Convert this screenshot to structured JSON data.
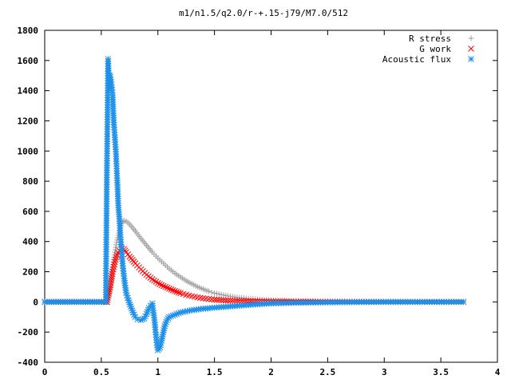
{
  "chart_data": {
    "type": "scatter",
    "title": "m1/n1.5/q2.0/r-+.15-j79/M7.0/512",
    "xlabel": "",
    "ylabel": "",
    "xlim": [
      0,
      4
    ],
    "ylim": [
      -400,
      1800
    ],
    "xticks": [
      0,
      0.5,
      1,
      1.5,
      2,
      2.5,
      3,
      3.5,
      4
    ],
    "xtick_labels": [
      "0",
      "0.5",
      "1",
      "1.5",
      "2",
      "2.5",
      "3",
      "3.5",
      "4"
    ],
    "yticks": [
      -400,
      -200,
      0,
      200,
      400,
      600,
      800,
      1000,
      1200,
      1400,
      1600,
      1800
    ],
    "ytick_labels": [
      "-400",
      "-200",
      "0",
      "200",
      "400",
      "600",
      "800",
      "1000",
      "1200",
      "1400",
      "1600",
      "1800"
    ],
    "grid": false,
    "legend_position": "top-right",
    "series": [
      {
        "name": "R stress",
        "marker": "plus",
        "color": "#a0a0a0",
        "points": [
          [
            0.0,
            0
          ],
          [
            0.1,
            0
          ],
          [
            0.2,
            0
          ],
          [
            0.3,
            0
          ],
          [
            0.4,
            0
          ],
          [
            0.5,
            0
          ],
          [
            0.55,
            0
          ],
          [
            0.56,
            30
          ],
          [
            0.58,
            100
          ],
          [
            0.6,
            230
          ],
          [
            0.62,
            330
          ],
          [
            0.64,
            410
          ],
          [
            0.66,
            470
          ],
          [
            0.68,
            520
          ],
          [
            0.7,
            540
          ],
          [
            0.72,
            535
          ],
          [
            0.75,
            515
          ],
          [
            0.8,
            470
          ],
          [
            0.85,
            420
          ],
          [
            0.9,
            375
          ],
          [
            0.95,
            330
          ],
          [
            1.0,
            290
          ],
          [
            1.05,
            255
          ],
          [
            1.1,
            220
          ],
          [
            1.15,
            190
          ],
          [
            1.2,
            165
          ],
          [
            1.25,
            140
          ],
          [
            1.3,
            120
          ],
          [
            1.35,
            100
          ],
          [
            1.4,
            85
          ],
          [
            1.45,
            70
          ],
          [
            1.5,
            58
          ],
          [
            1.6,
            42
          ],
          [
            1.7,
            30
          ],
          [
            1.8,
            22
          ],
          [
            1.9,
            16
          ],
          [
            2.0,
            12
          ],
          [
            2.1,
            9
          ],
          [
            2.2,
            7
          ],
          [
            2.3,
            6
          ],
          [
            2.5,
            4
          ],
          [
            2.8,
            3
          ],
          [
            3.1,
            2
          ],
          [
            3.4,
            1
          ],
          [
            3.7,
            1
          ]
        ]
      },
      {
        "name": "G work",
        "marker": "cross",
        "color": "#ff0000",
        "points": [
          [
            0.0,
            0
          ],
          [
            0.1,
            0
          ],
          [
            0.2,
            0
          ],
          [
            0.3,
            0
          ],
          [
            0.4,
            0
          ],
          [
            0.5,
            0
          ],
          [
            0.55,
            0
          ],
          [
            0.56,
            40
          ],
          [
            0.58,
            110
          ],
          [
            0.6,
            200
          ],
          [
            0.62,
            265
          ],
          [
            0.64,
            310
          ],
          [
            0.66,
            340
          ],
          [
            0.68,
            355
          ],
          [
            0.7,
            350
          ],
          [
            0.72,
            330
          ],
          [
            0.75,
            300
          ],
          [
            0.8,
            255
          ],
          [
            0.85,
            215
          ],
          [
            0.9,
            180
          ],
          [
            0.95,
            150
          ],
          [
            1.0,
            125
          ],
          [
            1.05,
            105
          ],
          [
            1.1,
            88
          ],
          [
            1.15,
            72
          ],
          [
            1.2,
            58
          ],
          [
            1.25,
            47
          ],
          [
            1.3,
            38
          ],
          [
            1.35,
            30
          ],
          [
            1.4,
            24
          ],
          [
            1.45,
            19
          ],
          [
            1.5,
            15
          ],
          [
            1.6,
            10
          ],
          [
            1.7,
            7
          ],
          [
            1.8,
            5
          ],
          [
            1.9,
            3
          ],
          [
            2.0,
            2
          ],
          [
            2.2,
            1
          ],
          [
            2.5,
            0
          ],
          [
            2.8,
            0
          ],
          [
            3.1,
            0
          ],
          [
            3.4,
            0
          ],
          [
            3.7,
            0
          ]
        ]
      },
      {
        "name": "Acoustic flux",
        "marker": "star",
        "color": "#1e90e8",
        "points": [
          [
            0.0,
            0
          ],
          [
            0.1,
            0
          ],
          [
            0.2,
            0
          ],
          [
            0.3,
            0
          ],
          [
            0.4,
            0
          ],
          [
            0.5,
            0
          ],
          [
            0.54,
            0
          ],
          [
            0.55,
            920
          ],
          [
            0.56,
            1610
          ],
          [
            0.57,
            1410
          ],
          [
            0.575,
            1500
          ],
          [
            0.58,
            1490
          ],
          [
            0.59,
            1440
          ],
          [
            0.6,
            1370
          ],
          [
            0.605,
            1280
          ],
          [
            0.61,
            1190
          ],
          [
            0.62,
            1090
          ],
          [
            0.63,
            980
          ],
          [
            0.635,
            900
          ],
          [
            0.64,
            820
          ],
          [
            0.645,
            730
          ],
          [
            0.65,
            640
          ],
          [
            0.66,
            550
          ],
          [
            0.67,
            430
          ],
          [
            0.68,
            330
          ],
          [
            0.69,
            240
          ],
          [
            0.7,
            170
          ],
          [
            0.71,
            110
          ],
          [
            0.72,
            60
          ],
          [
            0.74,
            10
          ],
          [
            0.76,
            -30
          ],
          [
            0.78,
            -70
          ],
          [
            0.8,
            -100
          ],
          [
            0.82,
            -115
          ],
          [
            0.85,
            -120
          ],
          [
            0.88,
            -110
          ],
          [
            0.9,
            -80
          ],
          [
            0.92,
            -40
          ],
          [
            0.95,
            -10
          ],
          [
            0.97,
            -120
          ],
          [
            0.98,
            -200
          ],
          [
            0.99,
            -270
          ],
          [
            1.0,
            -320
          ],
          [
            1.02,
            -300
          ],
          [
            1.04,
            -230
          ],
          [
            1.06,
            -160
          ],
          [
            1.08,
            -120
          ],
          [
            1.1,
            -100
          ],
          [
            1.15,
            -85
          ],
          [
            1.2,
            -70
          ],
          [
            1.3,
            -55
          ],
          [
            1.4,
            -45
          ],
          [
            1.5,
            -38
          ],
          [
            1.6,
            -32
          ],
          [
            1.7,
            -26
          ],
          [
            1.8,
            -20
          ],
          [
            1.9,
            -15
          ],
          [
            2.0,
            -10
          ],
          [
            2.2,
            -6
          ],
          [
            2.5,
            -3
          ],
          [
            2.8,
            -1
          ],
          [
            3.1,
            0
          ],
          [
            3.4,
            0
          ],
          [
            3.7,
            0
          ]
        ]
      }
    ]
  }
}
